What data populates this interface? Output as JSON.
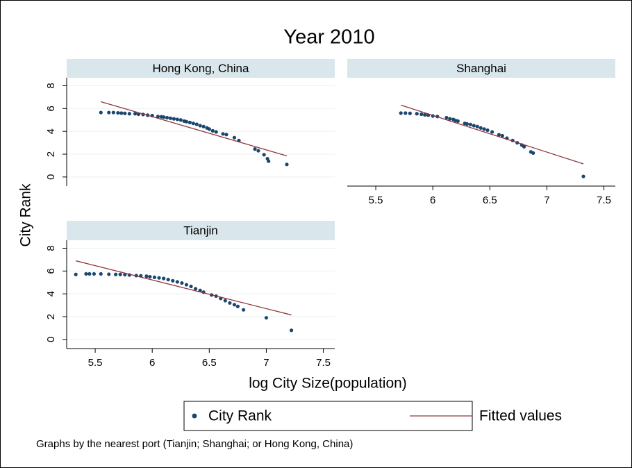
{
  "title": "Year 2010",
  "x_label": "log City Size(population)",
  "y_label": "City Rank",
  "note": "Graphs by the nearest port (Tianjin; Shanghai; or Hong Kong, China)",
  "legend": [
    {
      "name": "City Rank",
      "color": "#1a476f",
      "mark": "dot"
    },
    {
      "name": "Fitted values",
      "color": "#90353b",
      "mark": "line"
    }
  ],
  "chart_data": [
    {
      "type": "scatter",
      "subtitle": "Hong Kong, China",
      "xlim": [
        5.25,
        7.6
      ],
      "ylim": [
        -0.8,
        8.7
      ],
      "yticks": [
        0,
        2,
        4,
        6,
        8
      ],
      "grid": true,
      "series": [
        {
          "x": [
            5.55,
            5.62,
            5.66,
            5.7,
            5.73,
            5.76,
            5.8,
            5.85,
            5.88,
            5.92,
            5.96,
            6.0,
            6.05,
            6.08,
            6.1,
            6.13,
            6.16,
            6.19,
            6.22,
            6.25,
            6.28,
            6.3,
            6.33,
            6.36,
            6.39,
            6.42,
            6.45,
            6.48,
            6.5,
            6.53,
            6.56,
            6.62,
            6.65,
            6.72,
            6.76,
            6.9,
            6.93,
            6.98,
            7.01,
            7.02,
            7.18
          ],
          "values": [
            5.65,
            5.65,
            5.65,
            5.62,
            5.6,
            5.58,
            5.55,
            5.55,
            5.5,
            5.48,
            5.42,
            5.38,
            5.3,
            5.28,
            5.25,
            5.2,
            5.15,
            5.1,
            5.05,
            5.0,
            4.9,
            4.85,
            4.78,
            4.7,
            4.62,
            4.5,
            4.42,
            4.3,
            4.2,
            4.05,
            3.95,
            3.78,
            3.72,
            3.45,
            3.2,
            2.45,
            2.3,
            1.95,
            1.6,
            1.38,
            1.1
          ]
        },
        {
          "x": [
            5.55,
            7.18
          ],
          "values": [
            6.6,
            1.85
          ]
        }
      ]
    },
    {
      "type": "scatter",
      "subtitle": "Shanghai",
      "xlim": [
        5.25,
        7.6
      ],
      "ylim": [
        -0.8,
        8.7
      ],
      "xticks": [
        5.5,
        6,
        6.5,
        7,
        7.5
      ],
      "series": [
        {
          "x": [
            5.72,
            5.76,
            5.8,
            5.86,
            5.9,
            5.93,
            5.96,
            6.0,
            6.04,
            6.12,
            6.15,
            6.18,
            6.2,
            6.22,
            6.28,
            6.3,
            6.33,
            6.36,
            6.39,
            6.42,
            6.45,
            6.48,
            6.52,
            6.58,
            6.61,
            6.65,
            6.7,
            6.74,
            6.78,
            6.8,
            6.86,
            6.88,
            7.32
          ],
          "values": [
            5.6,
            5.6,
            5.58,
            5.55,
            5.5,
            5.45,
            5.42,
            5.35,
            5.3,
            5.2,
            5.1,
            5.05,
            4.95,
            4.9,
            4.7,
            4.65,
            4.6,
            4.5,
            4.42,
            4.3,
            4.2,
            4.1,
            3.95,
            3.7,
            3.62,
            3.4,
            3.2,
            3.0,
            2.8,
            2.65,
            2.2,
            2.1,
            0.05
          ]
        },
        {
          "x": [
            5.72,
            7.32
          ],
          "values": [
            6.3,
            1.15
          ]
        }
      ]
    },
    {
      "type": "scatter",
      "subtitle": "Tianjin",
      "xlim": [
        5.25,
        7.6
      ],
      "ylim": [
        -0.8,
        8.7
      ],
      "xticks": [
        5.5,
        6,
        6.5,
        7,
        7.5
      ],
      "yticks": [
        0,
        2,
        4,
        6,
        8
      ],
      "grid": true,
      "series": [
        {
          "x": [
            5.33,
            5.42,
            5.45,
            5.49,
            5.55,
            5.62,
            5.68,
            5.72,
            5.76,
            5.8,
            5.86,
            5.9,
            5.95,
            5.98,
            6.02,
            6.06,
            6.1,
            6.14,
            6.18,
            6.22,
            6.26,
            6.3,
            6.34,
            6.38,
            6.42,
            6.45,
            6.52,
            6.56,
            6.6,
            6.64,
            6.68,
            6.72,
            6.75,
            6.8,
            7.0,
            7.22
          ],
          "values": [
            5.7,
            5.75,
            5.75,
            5.75,
            5.75,
            5.72,
            5.7,
            5.7,
            5.68,
            5.65,
            5.6,
            5.58,
            5.55,
            5.5,
            5.45,
            5.4,
            5.35,
            5.25,
            5.15,
            5.05,
            4.95,
            4.8,
            4.65,
            4.45,
            4.3,
            4.15,
            3.9,
            3.8,
            3.6,
            3.4,
            3.2,
            3.05,
            2.9,
            2.6,
            1.9,
            0.8
          ]
        },
        {
          "x": [
            5.33,
            7.22
          ],
          "values": [
            6.9,
            2.15
          ]
        }
      ]
    }
  ]
}
